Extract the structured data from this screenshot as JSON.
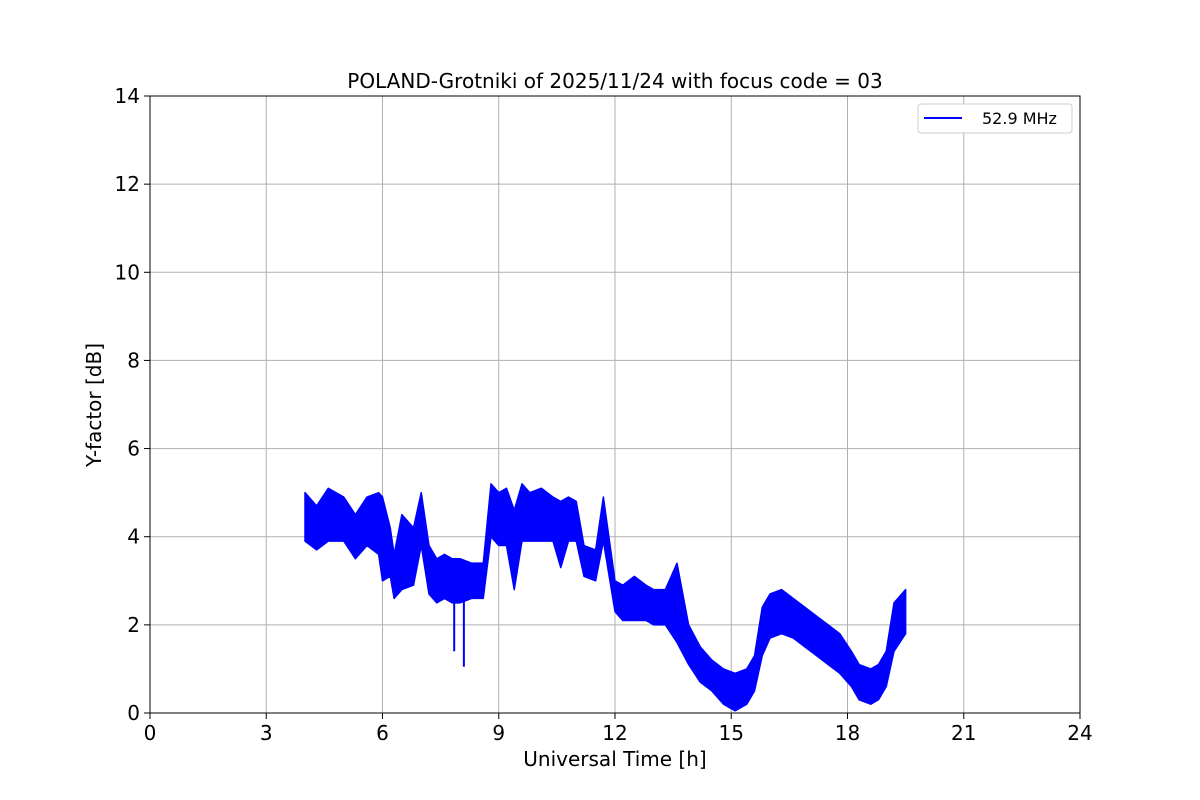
{
  "chart_data": {
    "type": "line",
    "title": "POLAND-Grotniki of 2025/11/24 with focus code = 03",
    "xlabel": "Universal Time [h]",
    "ylabel": "Y-factor [dB]",
    "xlim": [
      0,
      24
    ],
    "ylim": [
      0,
      14
    ],
    "xticks": [
      0,
      3,
      6,
      9,
      12,
      15,
      18,
      21,
      24
    ],
    "yticks": [
      0,
      2,
      4,
      6,
      8,
      10,
      12,
      14
    ],
    "grid": true,
    "legend": {
      "position": "top-right"
    },
    "series": [
      {
        "name": "52.9 MHz",
        "color": "#0000ff",
        "band_min": [
          [
            4.0,
            3.9
          ],
          [
            4.3,
            3.7
          ],
          [
            4.6,
            3.9
          ],
          [
            5.0,
            3.9
          ],
          [
            5.3,
            3.5
          ],
          [
            5.6,
            3.8
          ],
          [
            5.9,
            3.6
          ],
          [
            6.0,
            3.0
          ],
          [
            6.2,
            3.1
          ],
          [
            6.3,
            2.6
          ],
          [
            6.5,
            2.8
          ],
          [
            6.8,
            2.9
          ],
          [
            7.0,
            3.8
          ],
          [
            7.2,
            2.7
          ],
          [
            7.4,
            2.5
          ],
          [
            7.6,
            2.6
          ],
          [
            7.8,
            2.5
          ],
          [
            8.0,
            2.5
          ],
          [
            8.3,
            2.6
          ],
          [
            8.6,
            2.6
          ],
          [
            8.8,
            4.0
          ],
          [
            9.0,
            3.8
          ],
          [
            9.2,
            3.8
          ],
          [
            9.4,
            2.8
          ],
          [
            9.6,
            3.9
          ],
          [
            9.8,
            3.9
          ],
          [
            10.1,
            3.9
          ],
          [
            10.4,
            3.9
          ],
          [
            10.6,
            3.3
          ],
          [
            10.8,
            3.9
          ],
          [
            11.0,
            3.9
          ],
          [
            11.2,
            3.1
          ],
          [
            11.5,
            3.0
          ],
          [
            11.7,
            3.9
          ],
          [
            12.0,
            2.3
          ],
          [
            12.2,
            2.1
          ],
          [
            12.5,
            2.1
          ],
          [
            12.8,
            2.1
          ],
          [
            13.0,
            2.0
          ],
          [
            13.3,
            2.0
          ],
          [
            13.6,
            1.6
          ],
          [
            13.9,
            1.1
          ],
          [
            14.2,
            0.7
          ],
          [
            14.5,
            0.5
          ],
          [
            14.8,
            0.2
          ],
          [
            15.1,
            0.05
          ],
          [
            15.4,
            0.2
          ],
          [
            15.6,
            0.5
          ],
          [
            15.8,
            1.3
          ],
          [
            16.0,
            1.7
          ],
          [
            16.3,
            1.8
          ],
          [
            16.6,
            1.7
          ],
          [
            16.9,
            1.5
          ],
          [
            17.2,
            1.3
          ],
          [
            17.5,
            1.1
          ],
          [
            17.8,
            0.9
          ],
          [
            18.1,
            0.6
          ],
          [
            18.3,
            0.3
          ],
          [
            18.6,
            0.2
          ],
          [
            18.8,
            0.3
          ],
          [
            19.0,
            0.6
          ],
          [
            19.2,
            1.4
          ],
          [
            19.5,
            1.8
          ]
        ],
        "band_max": [
          [
            4.0,
            5.0
          ],
          [
            4.3,
            4.7
          ],
          [
            4.6,
            5.1
          ],
          [
            5.0,
            4.9
          ],
          [
            5.3,
            4.5
          ],
          [
            5.6,
            4.9
          ],
          [
            5.9,
            5.0
          ],
          [
            6.0,
            4.9
          ],
          [
            6.2,
            4.2
          ],
          [
            6.3,
            3.6
          ],
          [
            6.5,
            4.5
          ],
          [
            6.8,
            4.2
          ],
          [
            7.0,
            5.0
          ],
          [
            7.2,
            3.8
          ],
          [
            7.4,
            3.5
          ],
          [
            7.6,
            3.6
          ],
          [
            7.8,
            3.5
          ],
          [
            8.0,
            3.5
          ],
          [
            8.3,
            3.4
          ],
          [
            8.6,
            3.4
          ],
          [
            8.8,
            5.2
          ],
          [
            9.0,
            5.0
          ],
          [
            9.2,
            5.1
          ],
          [
            9.4,
            4.6
          ],
          [
            9.6,
            5.2
          ],
          [
            9.8,
            5.0
          ],
          [
            10.1,
            5.1
          ],
          [
            10.4,
            4.9
          ],
          [
            10.6,
            4.8
          ],
          [
            10.8,
            4.9
          ],
          [
            11.0,
            4.8
          ],
          [
            11.2,
            3.8
          ],
          [
            11.5,
            3.7
          ],
          [
            11.7,
            4.9
          ],
          [
            12.0,
            3.0
          ],
          [
            12.2,
            2.9
          ],
          [
            12.5,
            3.1
          ],
          [
            12.8,
            2.9
          ],
          [
            13.0,
            2.8
          ],
          [
            13.3,
            2.8
          ],
          [
            13.6,
            3.4
          ],
          [
            13.9,
            2.0
          ],
          [
            14.2,
            1.5
          ],
          [
            14.5,
            1.2
          ],
          [
            14.8,
            1.0
          ],
          [
            15.1,
            0.9
          ],
          [
            15.4,
            1.0
          ],
          [
            15.6,
            1.3
          ],
          [
            15.8,
            2.4
          ],
          [
            16.0,
            2.7
          ],
          [
            16.3,
            2.8
          ],
          [
            16.6,
            2.6
          ],
          [
            16.9,
            2.4
          ],
          [
            17.2,
            2.2
          ],
          [
            17.5,
            2.0
          ],
          [
            17.8,
            1.8
          ],
          [
            18.1,
            1.4
          ],
          [
            18.3,
            1.1
          ],
          [
            18.6,
            1.0
          ],
          [
            18.8,
            1.1
          ],
          [
            19.0,
            1.4
          ],
          [
            19.2,
            2.5
          ],
          [
            19.5,
            2.8
          ]
        ],
        "spikes": [
          [
            7.85,
            1.4
          ],
          [
            8.1,
            1.05
          ]
        ]
      }
    ]
  }
}
